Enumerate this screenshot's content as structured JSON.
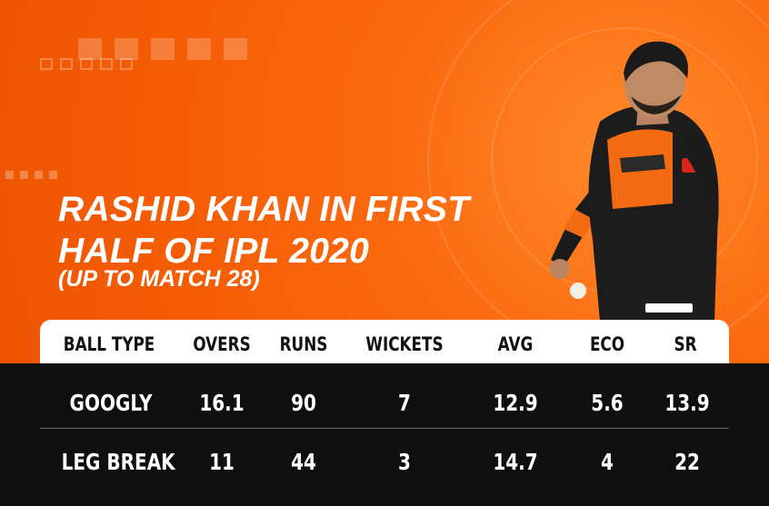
{
  "title_line1": "RASHID KHAN IN FIRST",
  "title_line2": "HALF OF IPL 2020",
  "subtitle": "(UP TO MATCH 28)",
  "colors": {
    "background_orange": "#f45c05",
    "table_dark": "#0f0f0f",
    "header_white": "#ffffff",
    "text_white": "#ffffff",
    "text_dark": "#111111"
  },
  "table": {
    "headers": [
      "BALL TYPE",
      "OVERS",
      "RUNS",
      "WICKETS",
      "AVG",
      "ECO",
      "SR"
    ],
    "rows": [
      [
        "GOOGLY",
        "16.1",
        "90",
        "7",
        "12.9",
        "5.6",
        "13.9"
      ],
      [
        "LEG BREAK",
        "11",
        "44",
        "3",
        "14.7",
        "4",
        "22"
      ]
    ]
  }
}
